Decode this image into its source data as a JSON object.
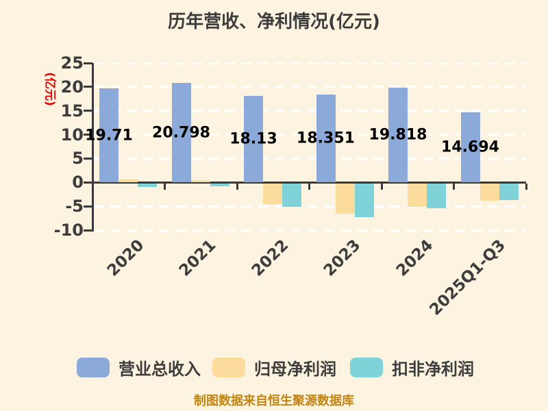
{
  "page": {
    "background": "#fcf3e0"
  },
  "chart_data": {
    "type": "bar",
    "title": "历年营收、净利情况(亿元)",
    "ylabel": "(亿元)",
    "caption": "制图数据来自恒生聚源数据库",
    "categories": [
      "2020",
      "2021",
      "2022",
      "2023",
      "2024",
      "2025Q1-Q3"
    ],
    "series": [
      {
        "name": "营业总收入",
        "color": "#8caad9",
        "values": [
          19.71,
          20.798,
          18.13,
          18.351,
          19.818,
          14.694
        ],
        "value_labels": [
          "19.71",
          "20.798",
          "18.13",
          "18.351",
          "19.818",
          "14.694"
        ]
      },
      {
        "name": "归母净利润",
        "color": "#fbdc9d",
        "values": [
          0.6,
          0.5,
          -4.4,
          -6.4,
          -4.85,
          -3.55
        ]
      },
      {
        "name": "扣非净利润",
        "color": "#7fd3d8",
        "values": [
          -0.75,
          -0.65,
          -4.85,
          -7.0,
          -5.25,
          -3.5
        ]
      }
    ],
    "yticks": [
      25,
      20,
      15,
      10,
      5,
      0,
      -5,
      -10
    ],
    "ylim": [
      -10,
      25
    ],
    "grid": "horizontal-white-dashed",
    "legend_position": "bottom",
    "colors": {
      "axis": "#3a3a3a",
      "tick_label": "#3d3d3d",
      "data_label": "#000000",
      "ylabel": "#e10600",
      "caption": "#c28511",
      "grid": "#ffffff",
      "background": "#fcf3e0"
    }
  }
}
